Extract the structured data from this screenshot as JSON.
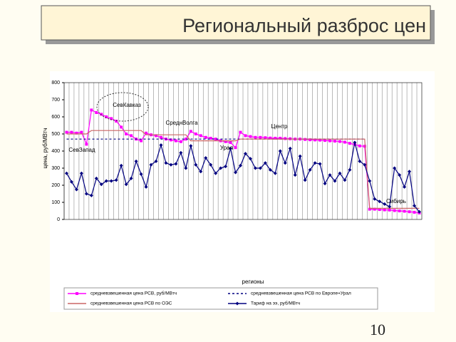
{
  "chart_data": {
    "type": "line",
    "title": "Региональный разброс цен",
    "page_number": "10",
    "ylabel": "цена, руб/МВтч",
    "xlabel": "регионы",
    "annotations": [
      "СевКавказ",
      "СреднВолга",
      "Центр",
      "Урал",
      "СевЗапад",
      "Сибирь"
    ],
    "categories": [
      null,
      null,
      null,
      null,
      null,
      null,
      null,
      null,
      null,
      null,
      null,
      null,
      null,
      null,
      null,
      null,
      null,
      null,
      null,
      null,
      null,
      null,
      null,
      null,
      null,
      null,
      null,
      null,
      null,
      null,
      null,
      null,
      null,
      null,
      null,
      null,
      null,
      null,
      null,
      null,
      null,
      null,
      null,
      null,
      null,
      null,
      null,
      null,
      null,
      null,
      null,
      null,
      null,
      null,
      null,
      null,
      null,
      null,
      null,
      null,
      null,
      null,
      null,
      null,
      null,
      null,
      null,
      null,
      null,
      null,
      null,
      null
    ],
    "ylim": [
      0,
      800
    ],
    "yticks": [
      0,
      100,
      200,
      300,
      400,
      500,
      600,
      700,
      800
    ],
    "grid": true,
    "series": [
      {
        "name": "средневзвешенная цена РСВ, руб/МВтч",
        "color": "#ff00ff",
        "marker": "square",
        "dashed": false,
        "values": [
          510,
          510,
          505,
          510,
          440,
          640,
          625,
          615,
          600,
          590,
          575,
          540,
          500,
          490,
          470,
          460,
          505,
          495,
          490,
          480,
          470,
          465,
          460,
          455,
          470,
          515,
          500,
          490,
          480,
          475,
          470,
          460,
          455,
          450,
          420,
          510,
          490,
          485,
          480,
          480,
          478,
          476,
          475,
          475,
          473,
          472,
          470,
          470,
          468,
          466,
          465,
          464,
          462,
          460,
          458,
          456,
          452,
          445,
          438,
          430,
          428,
          60,
          60,
          58,
          56,
          55,
          52,
          50,
          48,
          45,
          42,
          38
        ]
      },
      {
        "name": "средневзвешенная цена РСВ по Европе+Урал",
        "color": "#000080",
        "marker": "none",
        "dashed": true,
        "values": [
          470,
          470,
          470,
          470,
          470,
          470,
          470,
          470,
          470,
          470,
          470,
          470,
          470,
          470,
          470,
          470,
          470,
          470,
          470,
          470,
          470,
          470,
          470,
          470,
          470,
          470,
          470,
          470,
          470,
          470,
          470,
          470,
          470,
          470,
          470,
          470,
          470,
          470,
          470,
          470,
          470,
          470,
          470,
          470,
          470,
          470,
          470,
          470,
          470,
          470,
          470,
          470,
          470,
          470,
          470,
          470,
          470,
          470,
          470,
          470,
          470,
          null,
          null,
          null,
          null,
          null,
          null,
          null,
          null,
          null,
          null,
          null
        ]
      },
      {
        "name": "средневзвешенная цена РСВ по ОЭС",
        "color": "#cc6666",
        "marker": "none",
        "dashed": false,
        "values": [
          500,
          500,
          500,
          500,
          500,
          520,
          520,
          520,
          520,
          520,
          520,
          520,
          520,
          520,
          520,
          520,
          495,
          495,
          495,
          495,
          495,
          495,
          495,
          495,
          495,
          460,
          460,
          460,
          460,
          460,
          460,
          460,
          460,
          460,
          460,
          470,
          470,
          470,
          470,
          470,
          470,
          470,
          470,
          470,
          470,
          470,
          470,
          470,
          470,
          470,
          470,
          470,
          470,
          470,
          470,
          470,
          470,
          470,
          470,
          470,
          470,
          65,
          65,
          65,
          65,
          65,
          65,
          65,
          65,
          65,
          65,
          65
        ]
      },
      {
        "name": "Тариф на ээ, руб/МВтч",
        "color": "#000080",
        "marker": "diamond",
        "dashed": false,
        "values": [
          270,
          220,
          175,
          270,
          150,
          140,
          240,
          205,
          225,
          225,
          230,
          315,
          205,
          240,
          340,
          265,
          190,
          320,
          340,
          435,
          330,
          320,
          325,
          390,
          300,
          430,
          320,
          280,
          360,
          320,
          270,
          300,
          310,
          415,
          275,
          315,
          385,
          355,
          300,
          300,
          330,
          290,
          270,
          400,
          330,
          415,
          260,
          370,
          230,
          290,
          330,
          325,
          210,
          260,
          225,
          270,
          230,
          290,
          450,
          340,
          320,
          225,
          120,
          105,
          90,
          75,
          300,
          260,
          190,
          280,
          80,
          45
        ]
      }
    ]
  }
}
